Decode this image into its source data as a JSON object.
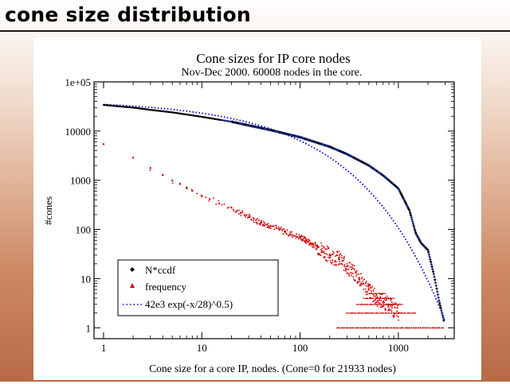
{
  "slide": {
    "title": "cone size distribution"
  },
  "chart_data": {
    "type": "scatter",
    "title": "Cone sizes for IP core nodes",
    "subtitle": "Nov-Dec 2000. 60008 nodes in the core.",
    "xlabel": "Cone size for a core IP, nodes.  (Cone=0 for 21933 nodes)",
    "ylabel": "#cones",
    "x_scale": "log",
    "y_scale": "log",
    "xlim": [
      0.8,
      3700
    ],
    "ylim": [
      0.6,
      100000
    ],
    "x_ticks": [
      {
        "value": 1,
        "label": "1"
      },
      {
        "value": 10,
        "label": "10"
      },
      {
        "value": 100,
        "label": "100"
      },
      {
        "value": 1000,
        "label": "1000"
      }
    ],
    "y_ticks": [
      {
        "value": 1,
        "label": "1"
      },
      {
        "value": 10,
        "label": "10"
      },
      {
        "value": 100,
        "label": "100"
      },
      {
        "value": 1000,
        "label": "1000"
      },
      {
        "value": 10000,
        "label": "10000"
      },
      {
        "value": 100000,
        "label": "1e+05"
      }
    ],
    "grid": false,
    "legend_position": "bottom-left",
    "series": [
      {
        "name": "N*ccdf",
        "marker": "diamond",
        "color": "#000000",
        "points": [
          [
            1,
            34000
          ],
          [
            2,
            30000
          ],
          [
            3,
            27000
          ],
          [
            5,
            24000
          ],
          [
            10,
            19500
          ],
          [
            20,
            15500
          ],
          [
            50,
            10500
          ],
          [
            100,
            7500
          ],
          [
            200,
            4800
          ],
          [
            300,
            3400
          ],
          [
            500,
            2000
          ],
          [
            700,
            1250
          ],
          [
            1000,
            680
          ],
          [
            1300,
            240
          ],
          [
            1500,
            85
          ],
          [
            1700,
            53
          ],
          [
            2000,
            38
          ],
          [
            2300,
            12
          ],
          [
            2600,
            3.5
          ],
          [
            2900,
            1.4
          ]
        ]
      },
      {
        "name": "frequency",
        "marker": "triangle",
        "color": "#cc0000",
        "points": [
          [
            1,
            5500
          ],
          [
            2,
            2900
          ],
          [
            3,
            1800
          ],
          [
            4,
            1300
          ],
          [
            5,
            1000
          ],
          [
            6,
            850
          ],
          [
            7,
            720
          ],
          [
            8,
            620
          ],
          [
            10,
            480
          ],
          [
            12,
            420
          ],
          [
            15,
            340
          ],
          [
            20,
            280
          ],
          [
            25,
            220
          ],
          [
            30,
            180
          ],
          [
            40,
            140
          ],
          [
            50,
            120
          ],
          [
            70,
            90
          ],
          [
            100,
            70
          ],
          [
            150,
            45
          ],
          [
            200,
            30
          ],
          [
            250,
            25
          ],
          [
            300,
            18
          ],
          [
            400,
            10
          ],
          [
            500,
            6
          ],
          [
            600,
            4
          ],
          [
            800,
            3
          ],
          [
            1000,
            2
          ]
        ],
        "floor_clusters": [
          {
            "y": 1,
            "x_from": 240,
            "x_to": 2900
          },
          {
            "y": 2,
            "x_from": 300,
            "x_to": 1500
          },
          {
            "y": 3,
            "x_from": 380,
            "x_to": 1100
          },
          {
            "y": 4,
            "x_from": 450,
            "x_to": 900
          },
          {
            "y": 5,
            "x_from": 500,
            "x_to": 750
          }
        ]
      },
      {
        "name": "42e3 exp(-x/28)^0.5)",
        "marker": "dotted-line",
        "color": "#0000cc",
        "function": "42000*exp(-sqrt(x/28))"
      }
    ]
  }
}
